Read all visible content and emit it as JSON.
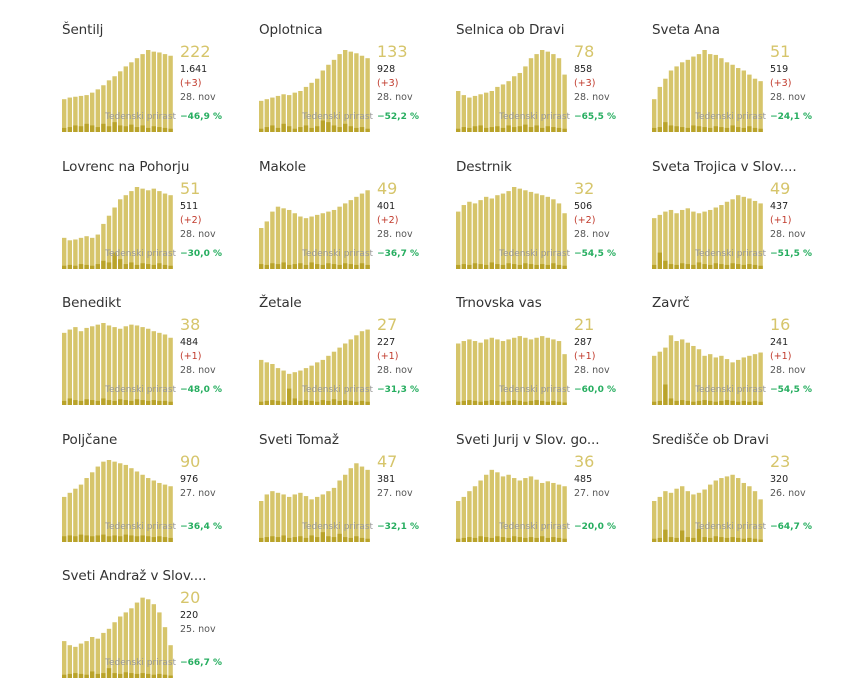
{
  "colors": {
    "bar_active": "#d6c56b",
    "bar_new": "#b9a32a",
    "active_text": "#d6c56b",
    "delta_text": "#c0392b",
    "weekly_text": "#27ae60"
  },
  "weekly_label": "Tedenski prirast",
  "chart_data": [
    {
      "type": "bar",
      "title": "Šentilj",
      "active": "222",
      "total": "1.641",
      "delta": "(+3)",
      "date": "28. nov",
      "weekly": "−46,9 %",
      "values": [
        0.4,
        0.42,
        0.43,
        0.44,
        0.45,
        0.48,
        0.52,
        0.57,
        0.63,
        0.68,
        0.74,
        0.8,
        0.85,
        0.9,
        0.95,
        1.0,
        0.98,
        0.97,
        0.95,
        0.93
      ],
      "new_values": [
        0.05,
        0.06,
        0.08,
        0.07,
        0.1,
        0.08,
        0.06,
        0.1,
        0.07,
        0.12,
        0.08,
        0.07,
        0.09,
        0.06,
        0.08,
        0.05,
        0.07,
        0.06,
        0.05,
        0.04
      ]
    },
    {
      "type": "bar",
      "title": "Oplotnica",
      "active": "133",
      "total": "928",
      "delta": "(+3)",
      "date": "28. nov",
      "weekly": "−52,2 %",
      "values": [
        0.38,
        0.4,
        0.42,
        0.44,
        0.46,
        0.45,
        0.48,
        0.5,
        0.55,
        0.6,
        0.65,
        0.75,
        0.82,
        0.88,
        0.95,
        1.0,
        0.98,
        0.96,
        0.93,
        0.9
      ],
      "new_values": [
        0.04,
        0.06,
        0.08,
        0.05,
        0.1,
        0.07,
        0.04,
        0.06,
        0.08,
        0.05,
        0.07,
        0.14,
        0.12,
        0.08,
        0.06,
        0.1,
        0.07,
        0.05,
        0.06,
        0.04
      ]
    },
    {
      "type": "bar",
      "title": "Selnica ob Dravi",
      "active": "78",
      "total": "858",
      "delta": "(+3)",
      "date": "28. nov",
      "weekly": "−65,5 %",
      "values": [
        0.5,
        0.45,
        0.42,
        0.44,
        0.46,
        0.48,
        0.5,
        0.55,
        0.58,
        0.62,
        0.68,
        0.72,
        0.8,
        0.9,
        0.95,
        1.0,
        0.98,
        0.95,
        0.9,
        0.7
      ],
      "new_values": [
        0.04,
        0.06,
        0.05,
        0.07,
        0.08,
        0.05,
        0.06,
        0.07,
        0.05,
        0.08,
        0.06,
        0.07,
        0.09,
        0.06,
        0.08,
        0.05,
        0.07,
        0.06,
        0.05,
        0.04
      ]
    },
    {
      "type": "bar",
      "title": "Sveta Ana",
      "active": "51",
      "total": "519",
      "delta": "(+3)",
      "date": "28. nov",
      "weekly": "−24,1 %",
      "values": [
        0.4,
        0.55,
        0.65,
        0.75,
        0.8,
        0.85,
        0.88,
        0.92,
        0.95,
        1.0,
        0.95,
        0.94,
        0.9,
        0.85,
        0.82,
        0.78,
        0.75,
        0.7,
        0.65,
        0.62
      ],
      "new_values": [
        0.05,
        0.06,
        0.12,
        0.08,
        0.07,
        0.06,
        0.05,
        0.08,
        0.07,
        0.06,
        0.05,
        0.07,
        0.06,
        0.05,
        0.08,
        0.06,
        0.05,
        0.07,
        0.05,
        0.04
      ]
    },
    {
      "type": "bar",
      "title": "Lovrenc na Pohorju",
      "active": "51",
      "total": "511",
      "delta": "(+2)",
      "date": "28. nov",
      "weekly": "−30,0 %",
      "values": [
        0.38,
        0.35,
        0.36,
        0.38,
        0.4,
        0.38,
        0.42,
        0.55,
        0.65,
        0.75,
        0.85,
        0.9,
        0.95,
        1.0,
        0.98,
        0.96,
        0.98,
        0.95,
        0.92,
        0.9
      ],
      "new_values": [
        0.04,
        0.05,
        0.04,
        0.06,
        0.05,
        0.04,
        0.06,
        0.1,
        0.08,
        0.2,
        0.12,
        0.06,
        0.08,
        0.05,
        0.07,
        0.06,
        0.05,
        0.07,
        0.05,
        0.04
      ]
    },
    {
      "type": "bar",
      "title": "Makole",
      "active": "49",
      "total": "401",
      "delta": "(+2)",
      "date": "28. nov",
      "weekly": "−36,7 %",
      "values": [
        0.5,
        0.58,
        0.7,
        0.76,
        0.74,
        0.72,
        0.68,
        0.64,
        0.62,
        0.64,
        0.66,
        0.68,
        0.7,
        0.72,
        0.76,
        0.8,
        0.84,
        0.88,
        0.92,
        0.96
      ],
      "new_values": [
        0.06,
        0.05,
        0.07,
        0.06,
        0.08,
        0.05,
        0.06,
        0.07,
        0.05,
        0.08,
        0.06,
        0.05,
        0.07,
        0.06,
        0.05,
        0.07,
        0.06,
        0.05,
        0.07,
        0.05
      ]
    },
    {
      "type": "bar",
      "title": "Destrnik",
      "active": "32",
      "total": "506",
      "delta": "(+2)",
      "date": "28. nov",
      "weekly": "−54,5 %",
      "values": [
        0.7,
        0.78,
        0.82,
        0.8,
        0.84,
        0.88,
        0.86,
        0.9,
        0.92,
        0.95,
        1.0,
        0.98,
        0.96,
        0.94,
        0.92,
        0.9,
        0.88,
        0.85,
        0.8,
        0.68
      ],
      "new_values": [
        0.05,
        0.06,
        0.05,
        0.07,
        0.06,
        0.05,
        0.08,
        0.06,
        0.05,
        0.07,
        0.06,
        0.05,
        0.07,
        0.06,
        0.05,
        0.06,
        0.05,
        0.07,
        0.05,
        0.04
      ]
    },
    {
      "type": "bar",
      "title": "Sveta Trojica v Slov....",
      "active": "49",
      "total": "437",
      "delta": "(+1)",
      "date": "28. nov",
      "weekly": "−51,5 %",
      "values": [
        0.62,
        0.66,
        0.7,
        0.72,
        0.68,
        0.72,
        0.74,
        0.7,
        0.68,
        0.7,
        0.72,
        0.75,
        0.78,
        0.82,
        0.85,
        0.9,
        0.88,
        0.86,
        0.83,
        0.8
      ],
      "new_values": [
        0.05,
        0.2,
        0.1,
        0.06,
        0.05,
        0.07,
        0.06,
        0.05,
        0.08,
        0.06,
        0.05,
        0.07,
        0.06,
        0.05,
        0.07,
        0.06,
        0.05,
        0.06,
        0.05,
        0.04
      ]
    },
    {
      "type": "bar",
      "title": "Benedikt",
      "active": "38",
      "total": "484",
      "delta": "(+1)",
      "date": "28. nov",
      "weekly": "−48,0 %",
      "values": [
        0.88,
        0.92,
        0.95,
        0.9,
        0.94,
        0.96,
        0.98,
        1.0,
        0.97,
        0.95,
        0.93,
        0.96,
        0.98,
        0.97,
        0.95,
        0.93,
        0.9,
        0.88,
        0.86,
        0.82
      ],
      "new_values": [
        0.05,
        0.08,
        0.06,
        0.05,
        0.07,
        0.06,
        0.05,
        0.08,
        0.06,
        0.05,
        0.07,
        0.06,
        0.05,
        0.07,
        0.06,
        0.05,
        0.06,
        0.05,
        0.05,
        0.04
      ]
    },
    {
      "type": "bar",
      "title": "Žetale",
      "active": "27",
      "total": "227",
      "delta": "(+1)",
      "date": "28. nov",
      "weekly": "−31,3 %",
      "values": [
        0.55,
        0.52,
        0.5,
        0.45,
        0.42,
        0.38,
        0.4,
        0.42,
        0.45,
        0.48,
        0.52,
        0.55,
        0.6,
        0.65,
        0.7,
        0.75,
        0.8,
        0.85,
        0.9,
        0.92
      ],
      "new_values": [
        0.04,
        0.05,
        0.06,
        0.05,
        0.04,
        0.2,
        0.08,
        0.05,
        0.06,
        0.05,
        0.04,
        0.06,
        0.05,
        0.07,
        0.05,
        0.06,
        0.05,
        0.04,
        0.05,
        0.04
      ]
    },
    {
      "type": "bar",
      "title": "Trnovska vas",
      "active": "21",
      "total": "287",
      "delta": "(+1)",
      "date": "28. nov",
      "weekly": "−60,0 %",
      "values": [
        0.75,
        0.78,
        0.8,
        0.78,
        0.76,
        0.8,
        0.82,
        0.8,
        0.78,
        0.8,
        0.82,
        0.84,
        0.82,
        0.8,
        0.82,
        0.84,
        0.82,
        0.8,
        0.78,
        0.62
      ],
      "new_values": [
        0.04,
        0.05,
        0.06,
        0.05,
        0.04,
        0.05,
        0.06,
        0.05,
        0.04,
        0.05,
        0.06,
        0.05,
        0.04,
        0.05,
        0.06,
        0.05,
        0.04,
        0.05,
        0.04,
        0.03
      ]
    },
    {
      "type": "bar",
      "title": "Zavrč",
      "active": "16",
      "total": "241",
      "delta": "(+1)",
      "date": "28. nov",
      "weekly": "−54,5 %",
      "values": [
        0.6,
        0.65,
        0.7,
        0.85,
        0.78,
        0.8,
        0.76,
        0.72,
        0.68,
        0.6,
        0.62,
        0.58,
        0.6,
        0.56,
        0.52,
        0.55,
        0.58,
        0.6,
        0.62,
        0.64
      ],
      "new_values": [
        0.04,
        0.05,
        0.25,
        0.08,
        0.05,
        0.06,
        0.05,
        0.04,
        0.05,
        0.06,
        0.05,
        0.04,
        0.05,
        0.06,
        0.05,
        0.04,
        0.05,
        0.04,
        0.05,
        0.04
      ]
    },
    {
      "type": "bar",
      "title": "Poljčane",
      "active": "90",
      "total": "976",
      "delta": "",
      "date": "27. nov",
      "weekly": "−36,4 %",
      "values": [
        0.55,
        0.6,
        0.65,
        0.7,
        0.78,
        0.85,
        0.92,
        0.98,
        1.0,
        0.98,
        0.96,
        0.94,
        0.9,
        0.86,
        0.82,
        0.78,
        0.75,
        0.72,
        0.7,
        0.68
      ],
      "new_values": [
        0.07,
        0.08,
        0.07,
        0.09,
        0.08,
        0.07,
        0.08,
        0.09,
        0.07,
        0.08,
        0.07,
        0.09,
        0.08,
        0.07,
        0.08,
        0.07,
        0.06,
        0.07,
        0.06,
        0.05
      ]
    },
    {
      "type": "bar",
      "title": "Sveti Tomaž",
      "active": "47",
      "total": "381",
      "delta": "",
      "date": "27. nov",
      "weekly": "−32,1 %",
      "values": [
        0.5,
        0.58,
        0.62,
        0.6,
        0.58,
        0.55,
        0.58,
        0.6,
        0.56,
        0.52,
        0.55,
        0.58,
        0.62,
        0.66,
        0.75,
        0.82,
        0.9,
        0.96,
        0.92,
        0.88
      ],
      "new_values": [
        0.05,
        0.06,
        0.07,
        0.06,
        0.08,
        0.05,
        0.06,
        0.07,
        0.05,
        0.08,
        0.06,
        0.12,
        0.07,
        0.06,
        0.1,
        0.06,
        0.05,
        0.07,
        0.05,
        0.04
      ]
    },
    {
      "type": "bar",
      "title": "Sveti Jurij v Slov. go...",
      "active": "36",
      "total": "485",
      "delta": "",
      "date": "27. nov",
      "weekly": "−20,0 %",
      "values": [
        0.5,
        0.55,
        0.62,
        0.68,
        0.75,
        0.82,
        0.88,
        0.85,
        0.8,
        0.82,
        0.78,
        0.75,
        0.78,
        0.8,
        0.76,
        0.72,
        0.74,
        0.72,
        0.7,
        0.68
      ],
      "new_values": [
        0.04,
        0.05,
        0.06,
        0.05,
        0.07,
        0.06,
        0.05,
        0.07,
        0.06,
        0.05,
        0.07,
        0.06,
        0.05,
        0.06,
        0.05,
        0.07,
        0.05,
        0.06,
        0.05,
        0.04
      ]
    },
    {
      "type": "bar",
      "title": "Središče ob Dravi",
      "active": "23",
      "total": "320",
      "delta": "",
      "date": "26. nov",
      "weekly": "−64,7 %",
      "values": [
        0.5,
        0.55,
        0.62,
        0.6,
        0.65,
        0.68,
        0.62,
        0.58,
        0.6,
        0.64,
        0.7,
        0.75,
        0.78,
        0.8,
        0.82,
        0.78,
        0.72,
        0.68,
        0.62,
        0.52
      ],
      "new_values": [
        0.04,
        0.05,
        0.15,
        0.06,
        0.05,
        0.14,
        0.06,
        0.05,
        0.16,
        0.06,
        0.05,
        0.07,
        0.06,
        0.05,
        0.06,
        0.05,
        0.04,
        0.05,
        0.04,
        0.03
      ]
    },
    {
      "type": "bar",
      "title": "Sveti Andraž v Slov....",
      "active": "20",
      "total": "220",
      "delta": "",
      "date": "25. nov",
      "weekly": "−66,7 %",
      "values": [
        0.45,
        0.4,
        0.38,
        0.42,
        0.45,
        0.5,
        0.48,
        0.55,
        0.6,
        0.68,
        0.75,
        0.8,
        0.85,
        0.92,
        0.98,
        0.96,
        0.9,
        0.8,
        0.62,
        0.4
      ],
      "new_values": [
        0.04,
        0.05,
        0.06,
        0.05,
        0.04,
        0.08,
        0.05,
        0.06,
        0.12,
        0.06,
        0.05,
        0.07,
        0.06,
        0.05,
        0.06,
        0.05,
        0.04,
        0.05,
        0.04,
        0.03
      ]
    }
  ]
}
